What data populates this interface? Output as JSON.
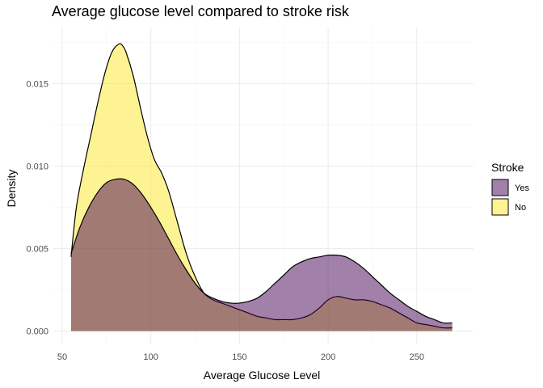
{
  "chart_data": {
    "type": "area",
    "title": "Average glucose level compared to stroke risk",
    "xlabel": "Average Glucose Level",
    "ylabel": "Density",
    "xlim": [
      45,
      282
    ],
    "ylim": [
      -0.0008,
      0.0184
    ],
    "x_ticks": [
      50,
      100,
      150,
      200,
      250
    ],
    "y_ticks": [
      0.0,
      0.005,
      0.01,
      0.015
    ],
    "y_tick_labels": [
      "0.000",
      "0.005",
      "0.010",
      "0.015"
    ],
    "grid": true,
    "legend": {
      "title": "Stroke",
      "position": "right",
      "entries": [
        "Yes",
        "No"
      ]
    },
    "series": [
      {
        "name": "No",
        "color": "#FDE725",
        "opacity": 0.5,
        "x": [
          55,
          58,
          62,
          66,
          70,
          74,
          78,
          82,
          84,
          86,
          90,
          94,
          98,
          102,
          106,
          110,
          115,
          120,
          125,
          130,
          135,
          140,
          145,
          150,
          155,
          160,
          165,
          170,
          175,
          180,
          185,
          190,
          195,
          200,
          205,
          210,
          215,
          220,
          225,
          230,
          235,
          240,
          245,
          250,
          255,
          260,
          265,
          270
        ],
        "y": [
          0.0045,
          0.0075,
          0.0098,
          0.0118,
          0.0138,
          0.0156,
          0.0169,
          0.0174,
          0.0173,
          0.0169,
          0.0155,
          0.0136,
          0.0118,
          0.0104,
          0.0096,
          0.0085,
          0.0066,
          0.0047,
          0.0033,
          0.0023,
          0.0019,
          0.0017,
          0.0015,
          0.0013,
          0.0011,
          0.0009,
          0.0008,
          0.0007,
          0.0007,
          0.0007,
          0.0008,
          0.001,
          0.0014,
          0.0019,
          0.0021,
          0.002,
          0.0019,
          0.0019,
          0.0018,
          0.0016,
          0.0014,
          0.0011,
          0.0008,
          0.0005,
          0.0004,
          0.0003,
          0.0002,
          0.0002
        ]
      },
      {
        "name": "Yes",
        "color": "#440154",
        "opacity": 0.5,
        "x": [
          55,
          60,
          65,
          70,
          75,
          80,
          85,
          90,
          95,
          100,
          105,
          110,
          115,
          120,
          125,
          130,
          135,
          140,
          145,
          150,
          155,
          160,
          165,
          170,
          175,
          180,
          185,
          190,
          195,
          200,
          205,
          210,
          215,
          220,
          225,
          230,
          235,
          240,
          245,
          250,
          255,
          260,
          265,
          270
        ],
        "y": [
          0.0047,
          0.0063,
          0.0075,
          0.0084,
          0.009,
          0.0092,
          0.0092,
          0.0089,
          0.0083,
          0.0075,
          0.0066,
          0.0056,
          0.0046,
          0.0037,
          0.0029,
          0.0023,
          0.002,
          0.0018,
          0.0017,
          0.0017,
          0.0018,
          0.002,
          0.0024,
          0.0029,
          0.0034,
          0.0039,
          0.0042,
          0.0044,
          0.0045,
          0.0046,
          0.0046,
          0.0045,
          0.0042,
          0.0038,
          0.0033,
          0.0028,
          0.0023,
          0.0019,
          0.0015,
          0.0012,
          0.0009,
          0.0007,
          0.0005,
          0.0005
        ]
      }
    ]
  }
}
